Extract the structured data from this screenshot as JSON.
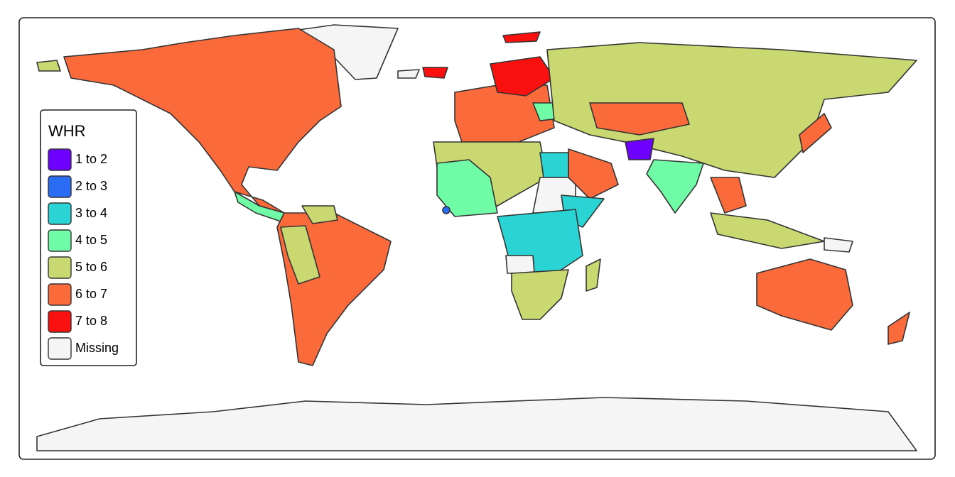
{
  "legend": {
    "title": "WHR",
    "items": [
      {
        "label": "1 to 2",
        "color": "#6e00ff"
      },
      {
        "label": "2 to 3",
        "color": "#2a6cf4"
      },
      {
        "label": "3 to 4",
        "color": "#2bd4d4"
      },
      {
        "label": "4 to 5",
        "color": "#70fca6"
      },
      {
        "label": "5 to 6",
        "color": "#cad872"
      },
      {
        "label": "6 to 7",
        "color": "#fa6a3b"
      },
      {
        "label": "7 to 8",
        "color": "#fb1010"
      },
      {
        "label": "Missing",
        "color": "#f5f5f5"
      }
    ]
  }
}
